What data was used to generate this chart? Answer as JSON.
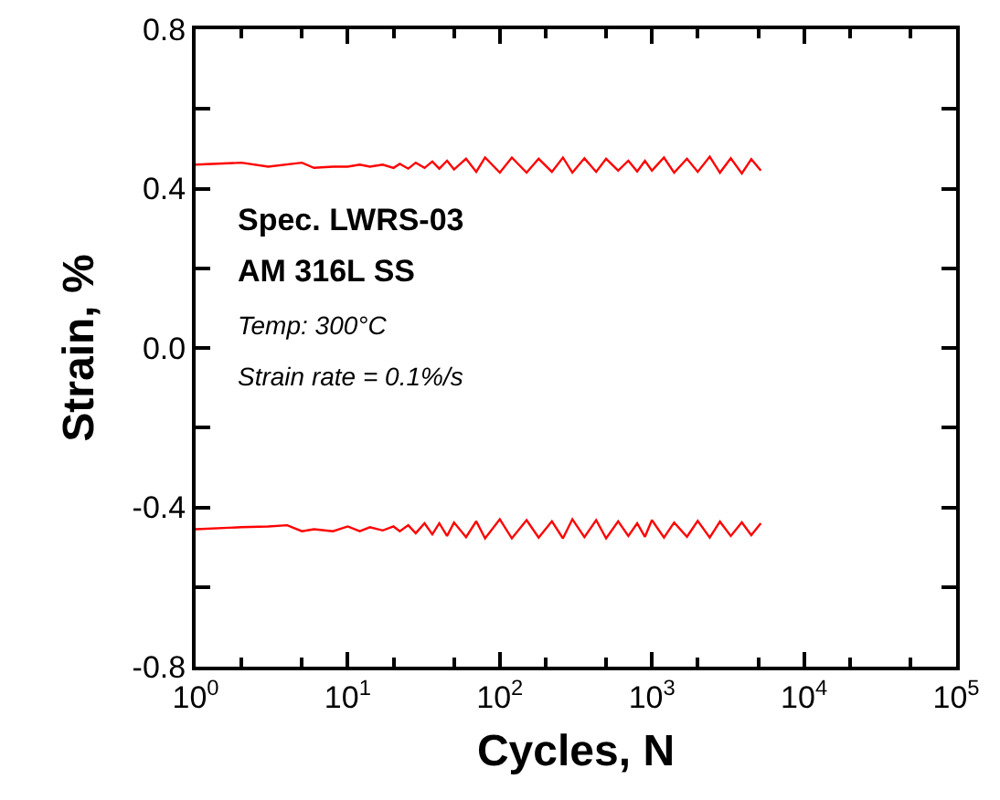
{
  "chart_data": {
    "type": "line",
    "xlabel": "Cycles, N",
    "ylabel": "Strain, %",
    "log": "x",
    "marker": "none",
    "line_style": "solid",
    "xlim": [
      1,
      100000
    ],
    "xticks": [
      {
        "value": 1,
        "label": "10$^{0}$"
      },
      {
        "value": 10,
        "label": "10$^{1}$"
      },
      {
        "value": 100,
        "label": "10$^{2}$"
      },
      {
        "value": 1000,
        "label": "10$^{3}$"
      },
      {
        "value": 10000,
        "label": "10$^{4}$"
      },
      {
        "value": 100000,
        "label": "10$^{5}$"
      }
    ],
    "ylim": [
      -0.8,
      0.8
    ],
    "yticks": [
      -0.8,
      -0.4,
      {
        "value": 0,
        "label": "0.0"
      },
      0.4,
      0.8
    ],
    "annotations": [
      "Spec. LWRS-03",
      "AM 316L SS",
      "Temp: 300°C",
      "Strain rate = 0.1%/s"
    ],
    "series": [
      {
        "color": "#ff0000",
        "x": [
          1,
          2,
          3,
          5,
          6,
          8,
          10,
          12,
          14,
          17,
          20,
          22,
          25,
          28,
          32,
          36,
          40,
          45,
          50,
          60,
          70,
          80,
          100,
          120,
          150,
          180,
          220,
          260,
          300,
          360,
          430,
          500,
          600,
          700,
          800,
          900,
          1000,
          1200,
          1400,
          1700,
          2000,
          2400,
          2800,
          3300,
          3900,
          4500,
          5200
        ],
        "values": [
          0.46,
          0.465,
          0.455,
          0.465,
          0.452,
          0.455,
          0.455,
          0.46,
          0.455,
          0.46,
          0.452,
          0.462,
          0.45,
          0.465,
          0.452,
          0.468,
          0.45,
          0.47,
          0.448,
          0.475,
          0.442,
          0.478,
          0.44,
          0.478,
          0.44,
          0.475,
          0.442,
          0.478,
          0.44,
          0.476,
          0.442,
          0.475,
          0.445,
          0.47,
          0.443,
          0.47,
          0.445,
          0.478,
          0.44,
          0.475,
          0.442,
          0.48,
          0.44,
          0.476,
          0.438,
          0.474,
          0.445
        ]
      },
      {
        "color": "#ff0000",
        "x": [
          1,
          2,
          3,
          4,
          5,
          6,
          8,
          10,
          12,
          14,
          17,
          20,
          22,
          25,
          28,
          32,
          36,
          40,
          45,
          50,
          60,
          70,
          80,
          100,
          120,
          150,
          180,
          220,
          260,
          300,
          360,
          430,
          500,
          600,
          700,
          800,
          900,
          1000,
          1200,
          1400,
          1700,
          2000,
          2400,
          2800,
          3300,
          3900,
          4500,
          5200
        ],
        "values": [
          -0.455,
          -0.45,
          -0.448,
          -0.445,
          -0.46,
          -0.455,
          -0.46,
          -0.448,
          -0.46,
          -0.45,
          -0.458,
          -0.448,
          -0.46,
          -0.445,
          -0.465,
          -0.44,
          -0.468,
          -0.44,
          -0.472,
          -0.438,
          -0.475,
          -0.435,
          -0.478,
          -0.43,
          -0.478,
          -0.432,
          -0.476,
          -0.435,
          -0.478,
          -0.43,
          -0.475,
          -0.432,
          -0.478,
          -0.435,
          -0.472,
          -0.44,
          -0.474,
          -0.432,
          -0.476,
          -0.438,
          -0.474,
          -0.434,
          -0.476,
          -0.436,
          -0.472,
          -0.438,
          -0.47,
          -0.44
        ]
      }
    ]
  }
}
